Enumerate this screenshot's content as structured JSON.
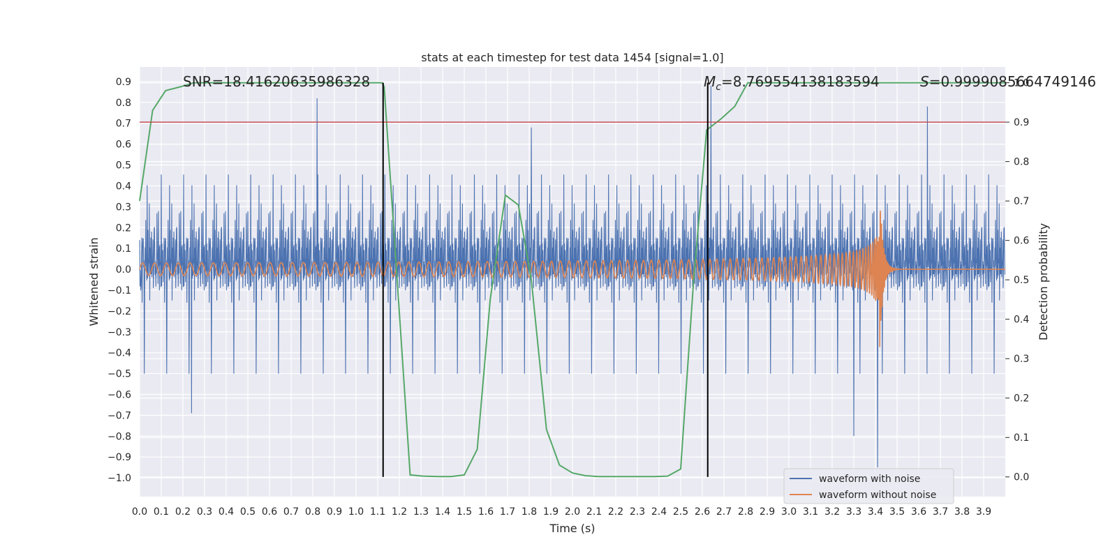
{
  "chart_data": {
    "type": "line",
    "title": "stats at each timestep for test data 1454 [signal=1.0]",
    "xlabel": "Time (s)",
    "ylabel_left": "Whitened strain",
    "ylabel_right": "Detection probability",
    "xlim": [
      0.0,
      4.0
    ],
    "ylim_left": [
      -1.09,
      0.97
    ],
    "ylim_right": [
      -0.05,
      1.04
    ],
    "x_ticks": [
      "0.0",
      "0.1",
      "0.2",
      "0.3",
      "0.4",
      "0.5",
      "0.6",
      "0.7",
      "0.8",
      "0.9",
      "1.0",
      "1.1",
      "1.2",
      "1.3",
      "1.4",
      "1.5",
      "1.6",
      "1.7",
      "1.8",
      "1.9",
      "2.0",
      "2.1",
      "2.2",
      "2.3",
      "2.4",
      "2.5",
      "2.6",
      "2.7",
      "2.8",
      "2.9",
      "3.0",
      "3.1",
      "3.2",
      "3.3",
      "3.4",
      "3.5",
      "3.6",
      "3.7",
      "3.8",
      "3.9"
    ],
    "y_ticks_left": [
      "−1.0",
      "−0.9",
      "−0.8",
      "−0.7",
      "−0.6",
      "−0.5",
      "−0.4",
      "−0.3",
      "−0.2",
      "−0.1",
      "0.0",
      "0.1",
      "0.2",
      "0.3",
      "0.4",
      "0.5",
      "0.6",
      "0.7",
      "0.8",
      "0.9"
    ],
    "y_ticks_right": [
      "0.0",
      "0.1",
      "0.2",
      "0.3",
      "0.4",
      "0.5",
      "0.6",
      "0.7",
      "0.8",
      "0.9",
      "1.0"
    ],
    "grid": true,
    "legend_position": "bottom-right",
    "annotations": {
      "snr": "SNR=18.41620635986328",
      "mc_symbol": "M",
      "mc_sub": "c",
      "mc_value": "=8.769554138183594",
      "s_symbol": "S",
      "s_value": "=0.9999085664749146"
    },
    "threshold_right": 0.9,
    "vertical_markers": [
      1.125,
      2.625
    ],
    "series": [
      {
        "name": "waveform with noise",
        "axis": "left",
        "color": "#4c72b0",
        "description_values": {
          "noise_amplitude": 0.55,
          "spikes": [
            [
              0.24,
              -0.69
            ],
            [
              0.82,
              0.82
            ],
            [
              1.81,
              0.68
            ],
            [
              2.64,
              0.88
            ],
            [
              3.41,
              -0.95
            ],
            [
              3.64,
              0.78
            ],
            [
              3.3,
              -0.8
            ]
          ]
        }
      },
      {
        "name": "waveform without noise",
        "axis": "left",
        "color": "#dd8452",
        "chirp": {
          "start_freq_hz": 18,
          "merger_time": 3.42,
          "amplitude_start": 0.03,
          "amplitude_peak": 0.38
        }
      },
      {
        "name": "",
        "axis": "right",
        "color": "#55a868",
        "x": [
          0.0,
          0.06,
          0.12,
          0.19,
          0.25,
          0.31,
          0.5,
          1.0,
          1.12,
          1.13,
          1.19,
          1.25,
          1.31,
          1.38,
          1.44,
          1.5,
          1.56,
          1.62,
          1.69,
          1.75,
          1.81,
          1.88,
          1.94,
          2.0,
          2.06,
          2.12,
          2.19,
          2.25,
          2.31,
          2.38,
          2.44,
          2.5,
          2.56,
          2.62,
          2.69,
          2.75,
          2.81,
          3.0,
          3.5,
          4.0
        ],
        "y": [
          0.7,
          0.93,
          0.98,
          0.99,
          1.0,
          1.0,
          1.0,
          1.0,
          1.0,
          0.99,
          0.5,
          0.005,
          0.002,
          0.001,
          0.001,
          0.005,
          0.07,
          0.45,
          0.715,
          0.69,
          0.5,
          0.12,
          0.03,
          0.01,
          0.003,
          0.001,
          0.001,
          0.001,
          0.001,
          0.001,
          0.002,
          0.02,
          0.5,
          0.88,
          0.91,
          0.94,
          1.0,
          1.0,
          1.0,
          1.0
        ]
      }
    ]
  }
}
